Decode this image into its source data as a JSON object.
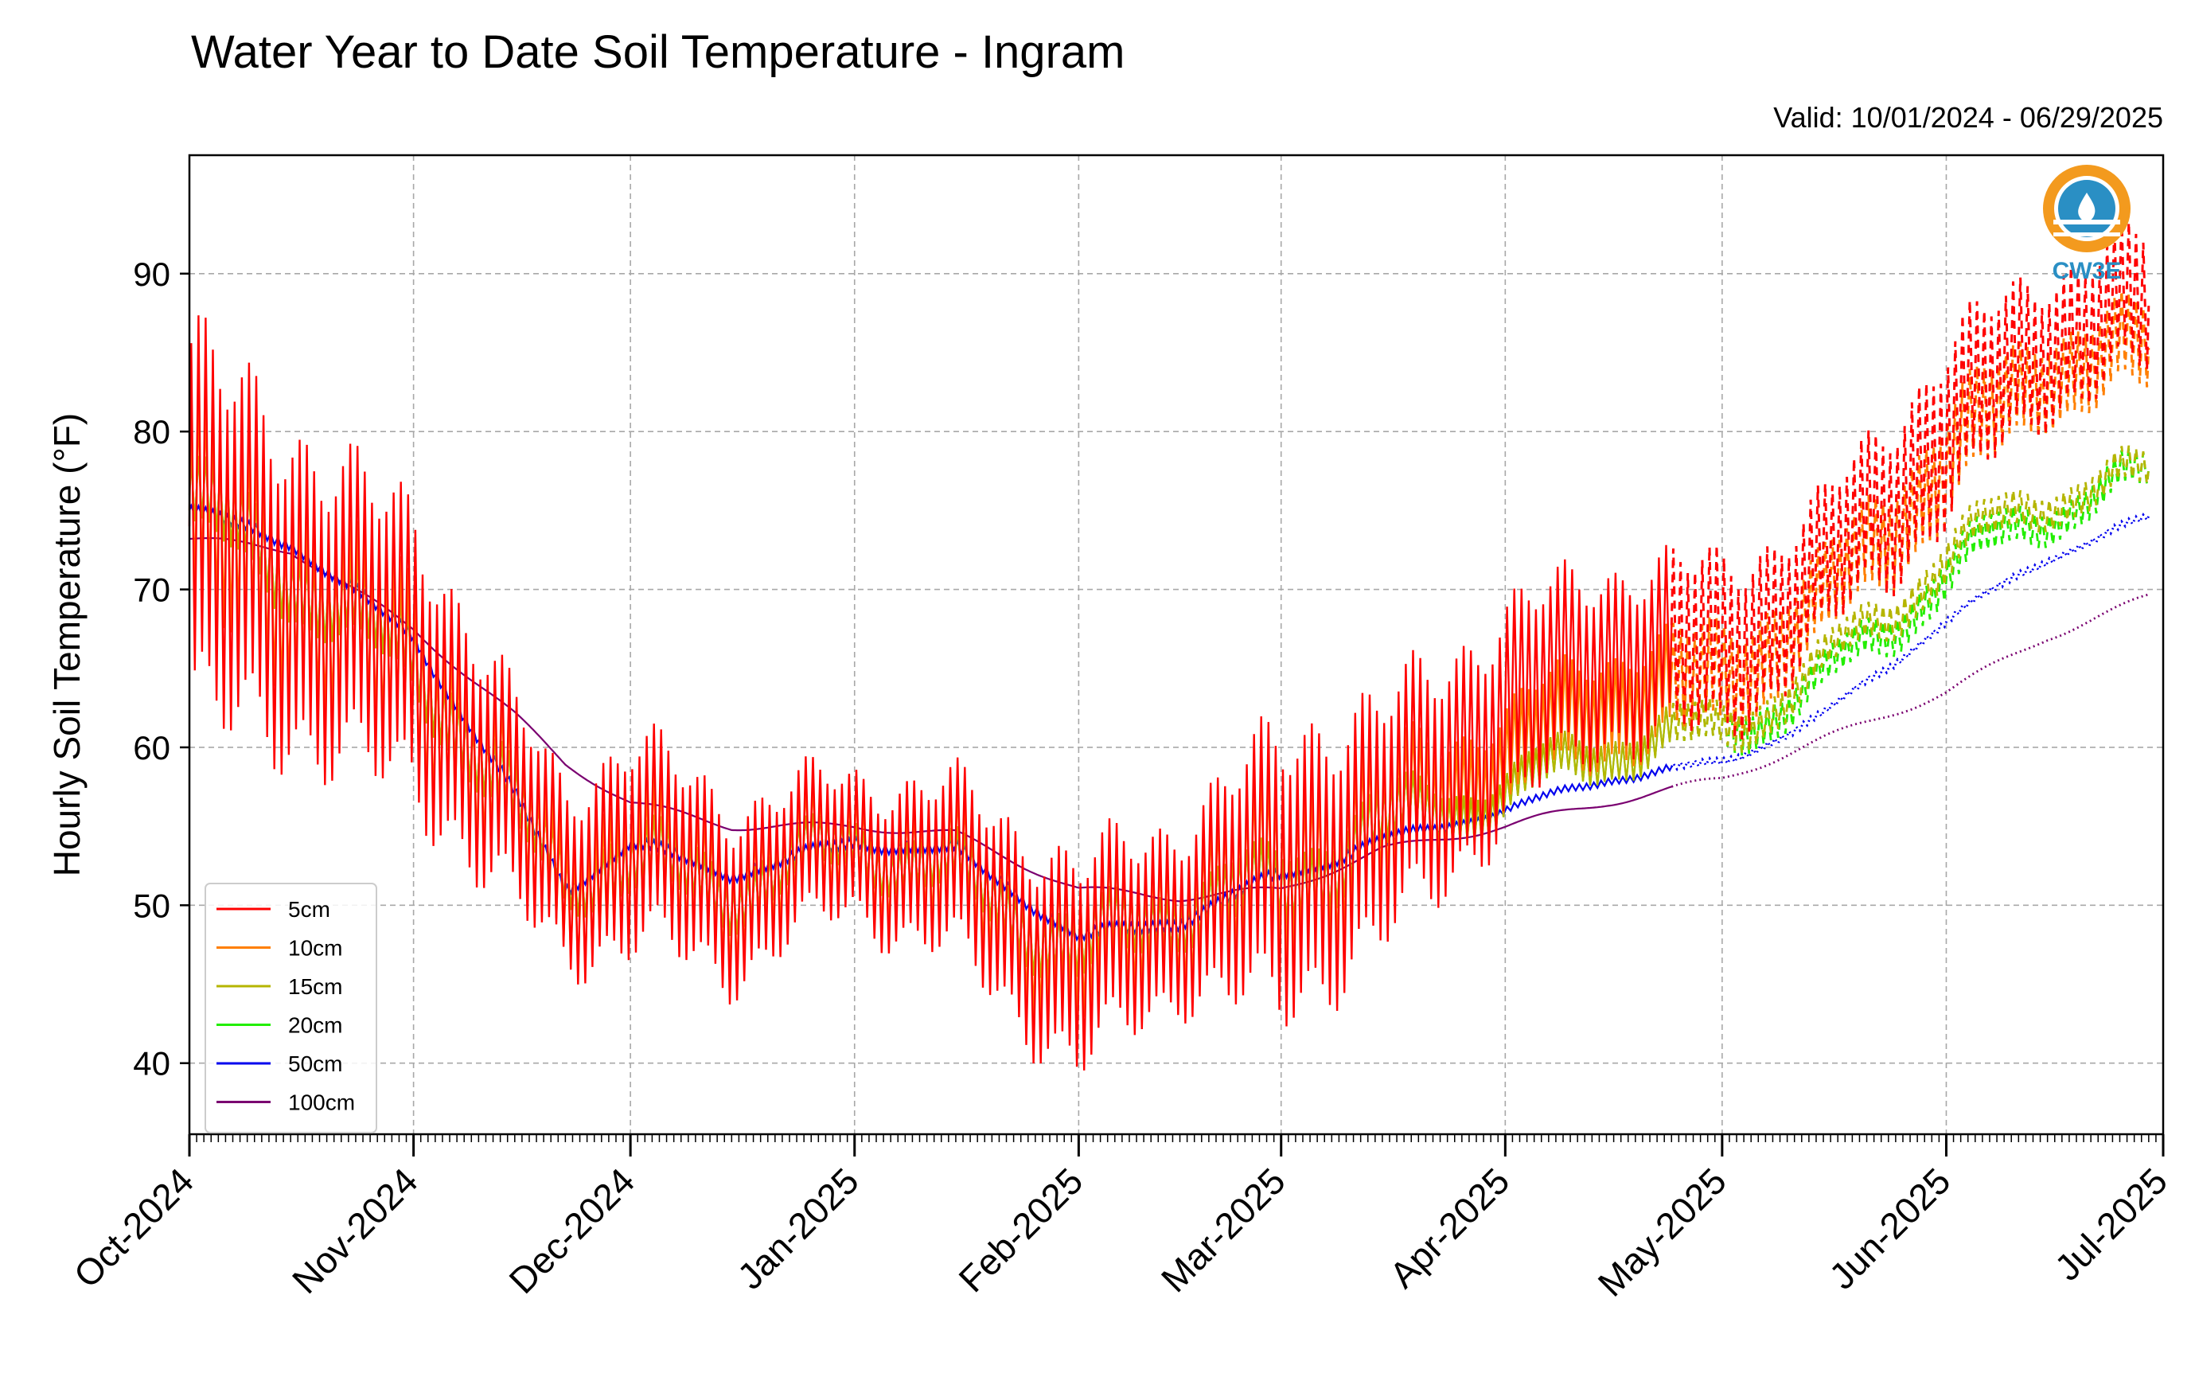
{
  "chart_data": {
    "type": "line",
    "title": "Water Year to Date Soil Temperature - Ingram",
    "subtitle": "Valid: 10/01/2024 - 06/29/2025",
    "ylabel": "Hourly Soil Temperature (°F)",
    "xlabel": "",
    "ylim": [
      35.5,
      97.5
    ],
    "xlim": [
      "2024-10-01",
      "2025-07-01"
    ],
    "y_ticks": [
      40,
      50,
      60,
      70,
      80,
      90
    ],
    "x_ticks": [
      "Oct-2024",
      "Nov-2024",
      "Dec-2024",
      "Jan-2025",
      "Feb-2025",
      "Mar-2025",
      "Apr-2025",
      "May-2025",
      "Jun-2025",
      "Jul-2025"
    ],
    "grid": true,
    "legend_position": "lower-left",
    "x_dates": [
      "2024-10-01",
      "2024-10-15",
      "2024-11-01",
      "2024-11-15",
      "2024-11-22",
      "2024-12-01",
      "2024-12-15",
      "2025-01-01",
      "2025-01-15",
      "2025-02-01",
      "2025-02-15",
      "2025-03-01",
      "2025-03-15",
      "2025-04-01",
      "2025-04-15",
      "2025-05-01",
      "2025-05-15",
      "2025-06-01",
      "2025-06-15",
      "2025-06-29"
    ],
    "series": [
      {
        "name": "5cm",
        "color": "#ff0000",
        "style": "dashed",
        "mean": [
          74,
          70,
          66,
          56,
          52,
          54,
          51,
          54,
          52,
          46,
          50,
          52,
          55,
          62,
          66,
          66,
          71,
          80,
          86,
          88
        ],
        "swing": [
          11,
          9,
          8,
          6,
          5,
          6,
          5,
          4,
          5,
          6,
          5,
          8,
          7,
          6,
          5,
          5,
          4,
          5,
          4,
          4
        ]
      },
      {
        "name": "10cm",
        "color": "#ff7f00",
        "style": "dashed",
        "mean": [
          75,
          70,
          65,
          56,
          51,
          53,
          51,
          54,
          52,
          47,
          50,
          52,
          55,
          59,
          63,
          64,
          69,
          78,
          84,
          85
        ],
        "swing": [
          6,
          5,
          5,
          4,
          3.5,
          4,
          3.5,
          3,
          3.5,
          4,
          3.5,
          5,
          4,
          3,
          3,
          3,
          2.5,
          3,
          2.5,
          2.5
        ]
      },
      {
        "name": "15cm",
        "color": "#b5b500",
        "style": "dashed",
        "mean": [
          76,
          71,
          66,
          56,
          52,
          53,
          51,
          54,
          52,
          47,
          50,
          51,
          55,
          57,
          60,
          61,
          65,
          72,
          76,
          77
        ],
        "swing": [
          2,
          2,
          2,
          1.8,
          1.5,
          1.8,
          1.5,
          1.3,
          1.5,
          1.8,
          1.5,
          2,
          1.8,
          1.2,
          1.2,
          1.2,
          1,
          1.2,
          1,
          1
        ]
      },
      {
        "name": "20cm",
        "color": "#22ee00",
        "style": "dashed",
        "mean": [
          76,
          71,
          66,
          56,
          52,
          53,
          51,
          54,
          52,
          47,
          50,
          51,
          55,
          57,
          60,
          61,
          64,
          71,
          75,
          77
        ],
        "swing": [
          2,
          2,
          2,
          1.8,
          1.5,
          1.8,
          1.5,
          1.3,
          1.5,
          1.8,
          1.5,
          2,
          1.8,
          1.2,
          1.2,
          1.2,
          1,
          1.2,
          1,
          1
        ]
      },
      {
        "name": "50cm",
        "color": "#0000ee",
        "style": "dotted",
        "mean": [
          75,
          73,
          67,
          57,
          51,
          54,
          52,
          54,
          53.5,
          48,
          49,
          52,
          54,
          56,
          58,
          59,
          62,
          68,
          72,
          74.5
        ],
        "swing": [
          0.3,
          0.3,
          0.3,
          0.3,
          0.3,
          0.3,
          0.3,
          0.3,
          0.3,
          0.3,
          0.3,
          0.3,
          0.3,
          0.2,
          0.2,
          0.2,
          0.2,
          0.2,
          0.2,
          0.2
        ]
      },
      {
        "name": "100cm",
        "color": "#7a0070",
        "style": "dotted",
        "mean": [
          73.2,
          72.5,
          67.5,
          62,
          59,
          56.5,
          55,
          55,
          54.5,
          51,
          50.5,
          51,
          53.5,
          55,
          56.5,
          58,
          60.5,
          63.5,
          67,
          69.5
        ],
        "swing": [
          0,
          0,
          0,
          0,
          0,
          0,
          0,
          0,
          0,
          0,
          0,
          0,
          0,
          0,
          0,
          0,
          0,
          0,
          0,
          0
        ]
      }
    ]
  },
  "logo": {
    "text": "CW3E",
    "ring_color": "#f39a1e",
    "water_color": "#2a8fc4"
  }
}
